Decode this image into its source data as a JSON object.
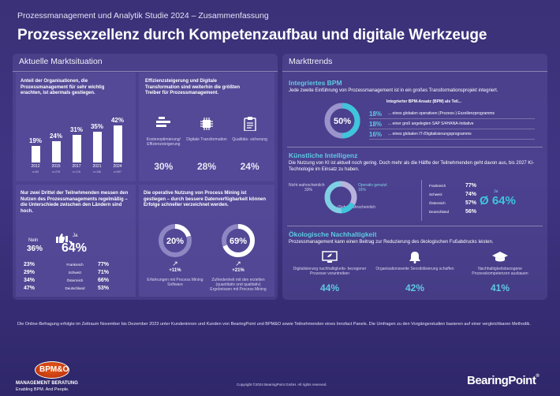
{
  "header": {
    "supertitle": "Prozessmanagement und Analytik Studie 2024 – Zusammenfassung",
    "title": "Prozessexzellenz durch Kompetenzaufbau und digitale Werkzeuge"
  },
  "left": {
    "heading": "Aktuelle Marktsituation",
    "chart_intro": "Anteil der Organisationen, die Prozessmanagement für sehr wichtig erachten, ist abermals gestiegen.",
    "chart_data": {
      "type": "bar",
      "categories": [
        "2012",
        "2015",
        "2017",
        "2021",
        "2024"
      ],
      "n_labels": [
        "n=60",
        "n=278",
        "n=176",
        "n=136",
        "n=997"
      ],
      "values": [
        19,
        24,
        31,
        35,
        42
      ],
      "value_labels": [
        "19%",
        "24%",
        "31%",
        "35%",
        "42%"
      ]
    },
    "efficiency": {
      "text": "Effizienzsteigerung und Digitale Transformation sind weiterhin die größten Treiber für Prozessmanagement.",
      "items": [
        {
          "icon": "factory-icon",
          "label": "Kostenoptimierung/ Effizienzsteigerung",
          "value": "30%"
        },
        {
          "icon": "chip-icon",
          "label": "Digitale Transformation",
          "value": "28%"
        },
        {
          "icon": "clipboard-icon",
          "label": "Qualitäts- sicherung",
          "value": "24%"
        }
      ]
    },
    "measure": {
      "text": "Nur zwei Drittel der Teilnehmenden messen den Nutzen des Prozessmanagements regelmäßig – die Unterschiede zwischen den Ländern sind hoch.",
      "no_label": "Nein",
      "no_value": "36%",
      "yes_label": "Ja",
      "yes_value": "64%",
      "rows": [
        {
          "no": "23%",
          "country": "Frankreich",
          "yes": "77%"
        },
        {
          "no": "29%",
          "country": "Schweiz",
          "yes": "71%"
        },
        {
          "no": "34%",
          "country": "Österreich",
          "yes": "66%"
        },
        {
          "no": "47%",
          "country": "Deutschland",
          "yes": "53%"
        }
      ]
    },
    "mining": {
      "text": "Die operative Nutzung von Process Mining ist gestiegen – durch bessere Datenverfügbarkeit können Erfolge schneller verzeichnet werden.",
      "items": [
        {
          "value": "20%",
          "fraction": 0.2,
          "delta": "+11%",
          "label": "Erfahrungen mit Process Mining Software"
        },
        {
          "value": "69%",
          "fraction": 0.69,
          "delta": "+21%",
          "label": "Zufriedenheit mit den erzielten (quantitativ und qualitativ) Ergebnissen mit Process Mining"
        }
      ]
    }
  },
  "right": {
    "heading": "Markttrends",
    "bpm": {
      "title": "Integriertes BPM",
      "text": "Jede zweite Einführung von Prozessmanagement ist in ein großes Transformationsprojekt integriert.",
      "donut_value": "50%",
      "donut_fraction": 0.5,
      "list_title": "Integrierter BPM-Ansatz (BPM) als Teil...",
      "items": [
        {
          "value": "18%",
          "label": "... eines globalen operativen (Prozess-) Exzellenzprogramms"
        },
        {
          "value": "18%",
          "label": "... einer groß angelegten SAP S/4HANA-Initiative"
        },
        {
          "value": "16%",
          "label": "... eines globalen IT-/Digitalisierungsprogramms"
        }
      ]
    },
    "ki": {
      "title": "Künstliche Intelligenz",
      "text": "Die Nutzung von KI ist aktuell noch gering. Doch mehr als die Hälfte der Teilnehmenden geht davon aus, bis 2027 KI-Technologie im Einsatz zu haben.",
      "segments": [
        {
          "label": "Nicht wahrscheinlich",
          "value": "33%",
          "fraction": 0.33
        },
        {
          "label": "Operativ genutzt",
          "value": "16%",
          "fraction": 0.16
        },
        {
          "label": "(Sehr) wahrscheinlich",
          "value": "51%",
          "fraction": 0.51
        }
      ],
      "countries": [
        {
          "country": "Frankreich",
          "value": "77%"
        },
        {
          "country": "Schweiz",
          "value": "74%"
        },
        {
          "country": "Österreich",
          "value": "57%"
        },
        {
          "country": "Deutschland",
          "value": "56%"
        }
      ],
      "avg_label": "Ja",
      "avg_value": "Ø 64%"
    },
    "eco": {
      "title": "Ökologische Nachhaltigkeit",
      "text": "Prozessmanagement kann einen Beitrag zur Reduzierung des ökologischen Fußabdrucks leisten.",
      "items": [
        {
          "icon": "monitor-icon",
          "label": "Digitalisierung nachhaltigkeits- bezogener Prozesse vorantreiben",
          "value": "44%"
        },
        {
          "icon": "bell-icon",
          "label": "Organisationsweite Sensibilisierung schaffen",
          "value": "42%"
        },
        {
          "icon": "graduation-cap-icon",
          "label": "Nachhaltigkeitsbezogene Prozesskompetenzen ausbauen",
          "value": "41%"
        }
      ]
    }
  },
  "footer": {
    "text": "Die Online-Befragung erfolgte im Zeitraum November bis Dezember 2023 unter Kundeninnen und Kunden von BearingPoint und BPM&O sowie Teilnehmenden eines Innofact Panels. Die Umfragen zu den Vorgängerstudien basieren auf einer vergleichbaren Methodik.",
    "copyright": "Copyright ©2024 BearingPoint GmbH. All rights reserved.",
    "bpmo_logo": "BPM&O",
    "bpmo_sub1": "MANAGEMENT BERATUNG",
    "bpmo_sub2": "Enabling BPM. And People.",
    "bearingpoint": "BearingPoint"
  },
  "colors": {
    "bg": "#3b3178",
    "accent": "#3fc4dc",
    "teal": "#7fd0e4"
  }
}
